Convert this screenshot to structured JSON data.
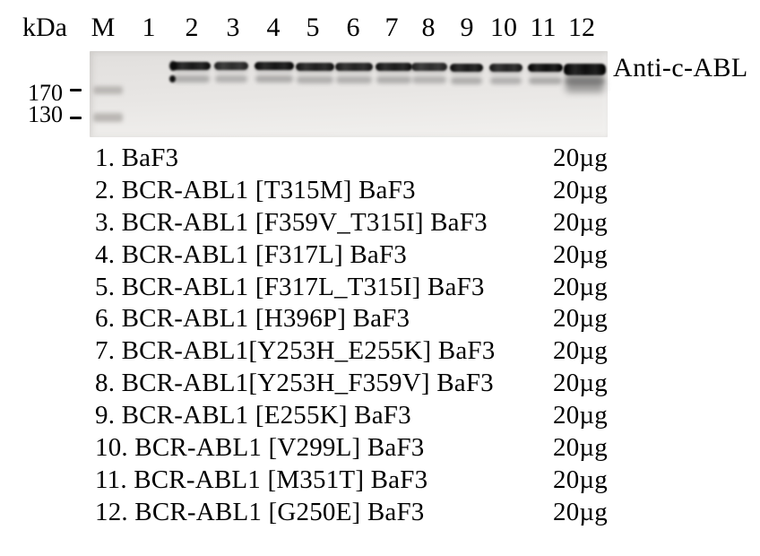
{
  "header": {
    "unit": "kDa",
    "lanes": [
      "M",
      "1",
      "2",
      "3",
      "4",
      "5",
      "6",
      "7",
      "8",
      "9",
      "10",
      "11",
      "12"
    ]
  },
  "blot": {
    "antibody": "Anti-c-ABL",
    "markers": [
      "170",
      "130"
    ],
    "marker_lane": "M",
    "lanes_with_bands": [
      "2",
      "3",
      "4",
      "5",
      "6",
      "7",
      "8",
      "9",
      "10",
      "11",
      "12"
    ],
    "band_pattern": "doublet: strong upper band with fainter lower band per positive lane; lane 1 empty; marker lane shows faint 170 and 130 bands"
  },
  "legend": {
    "rows": [
      {
        "label": "1. BaF3",
        "amount": "20µg"
      },
      {
        "label": "2. BCR-ABL1 [T315M] BaF3",
        "amount": "20µg"
      },
      {
        "label": "3. BCR-ABL1 [F359V_T315I] BaF3",
        "amount": "20µg"
      },
      {
        "label": "4. BCR-ABL1 [F317L] BaF3",
        "amount": "20µg"
      },
      {
        "label": "5. BCR-ABL1 [F317L_T315I] BaF3",
        "amount": "20µg"
      },
      {
        "label": "6. BCR-ABL1 [H396P] BaF3",
        "amount": "20µg"
      },
      {
        "label": "7. BCR-ABL1[Y253H_E255K] BaF3",
        "amount": "20µg"
      },
      {
        "label": "8. BCR-ABL1[Y253H_F359V] BaF3",
        "amount": "20µg"
      },
      {
        "label": "9. BCR-ABL1 [E255K] BaF3",
        "amount": "20µg"
      },
      {
        "label": "10. BCR-ABL1 [V299L] BaF3",
        "amount": "20µg"
      },
      {
        "label": "11. BCR-ABL1 [M351T] BaF3",
        "amount": "20µg"
      },
      {
        "label": "12. BCR-ABL1 [G250E] BaF3",
        "amount": "20µg"
      }
    ]
  },
  "colors": {
    "page_bg": "#ffffff",
    "text": "#000000",
    "blot_bg": "#e8e6e4",
    "band_dark": "#0c0c0c",
    "faint_band": "#5a5a5a",
    "marker_band": "#bab7b4"
  }
}
